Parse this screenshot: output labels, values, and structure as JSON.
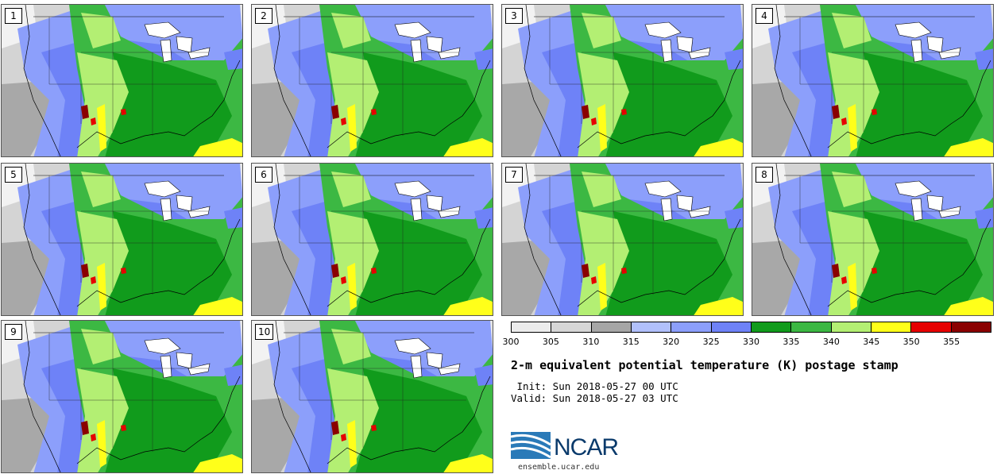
{
  "panels": [
    {
      "label": "1"
    },
    {
      "label": "2"
    },
    {
      "label": "3"
    },
    {
      "label": "4"
    },
    {
      "label": "5"
    },
    {
      "label": "6"
    },
    {
      "label": "7"
    },
    {
      "label": "8"
    },
    {
      "label": "9"
    },
    {
      "label": "10"
    }
  ],
  "colorbar": {
    "colors": [
      "#ececec",
      "#d6d6d6",
      "#a6a6a6",
      "#b1c0fb",
      "#8c9ffb",
      "#6e82f7",
      "#119b1c",
      "#3cb843",
      "#b3ef73",
      "#ffff1a",
      "#e60000",
      "#8a0000"
    ],
    "tick_labels": [
      "300",
      "305",
      "310",
      "315",
      "320",
      "325",
      "330",
      "335",
      "340",
      "345",
      "350",
      "355"
    ]
  },
  "title": "2-m equivalent potential temperature (K) postage stamp",
  "init": " Init: Sun 2018-05-27 00 UTC",
  "valid": "Valid: Sun 2018-05-27 03 UTC",
  "logo_text": "NCAR",
  "site": "ensemble.ucar.edu"
}
